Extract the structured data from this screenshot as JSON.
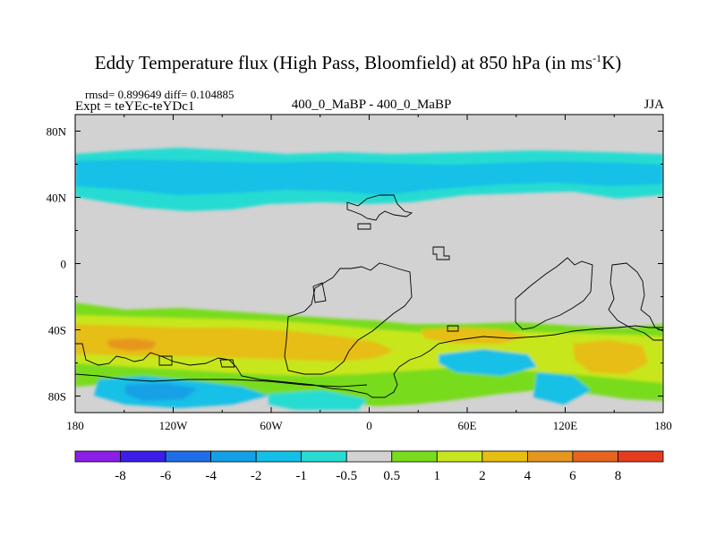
{
  "chart_data": {
    "type": "heatmap",
    "title": "Eddy Temperature flux (High Pass, Bloomfield) at 850 hPa (in ms",
    "title_superscript": "-1",
    "title_suffix": "K)",
    "stats": "rmsd= 0.899649 diff= 0.104885",
    "experiment": "Expt = teYEc-teYDc1",
    "center_label": "400_0_MaBP - 400_0_MaBP",
    "season": "JJA",
    "x_range": [
      -180,
      180
    ],
    "y_range": [
      -90,
      90
    ],
    "x_ticks": [
      {
        "value": -180,
        "label": "180"
      },
      {
        "value": -120,
        "label": "120W"
      },
      {
        "value": -60,
        "label": "60W"
      },
      {
        "value": 0,
        "label": "0"
      },
      {
        "value": 60,
        "label": "60E"
      },
      {
        "value": 120,
        "label": "120E"
      },
      {
        "value": 180,
        "label": "180"
      }
    ],
    "y_ticks": [
      {
        "value": 80,
        "label": "80N"
      },
      {
        "value": 40,
        "label": "40N"
      },
      {
        "value": 0,
        "label": "0"
      },
      {
        "value": -40,
        "label": "40S"
      },
      {
        "value": -80,
        "label": "80S"
      }
    ],
    "colorbar": {
      "levels": [
        "-8",
        "-6",
        "-4",
        "-2",
        "-1",
        "-0.5",
        "0.5",
        "1",
        "2",
        "4",
        "6",
        "8"
      ],
      "colors": [
        "#8c1ee8",
        "#3c1ee8",
        "#1e6ee8",
        "#14a0e6",
        "#14c0e6",
        "#28dcd2",
        "#d2d2d2",
        "#78dc1e",
        "#c8e61e",
        "#e6be14",
        "#e6961e",
        "#e6641e",
        "#e63c1e"
      ]
    },
    "regions": [
      {
        "level": "-1 to -0.5",
        "lat_range": [
          36,
          68
        ],
        "description": "band of negative flux across northern mid-latitudes"
      },
      {
        "level": "-2 to -1",
        "lat_range": [
          44,
          64
        ],
        "description": "embedded core of the northern band"
      },
      {
        "level": "1 to 2",
        "lat_range": [
          -84,
          -25
        ],
        "description": "southern mid-latitude positive band"
      },
      {
        "level": "2 to 4",
        "lat_range": [
          -68,
          -42
        ],
        "description": "southern positive core"
      },
      {
        "level": "4 to 6",
        "lat_range": [
          -58,
          -45
        ],
        "description": "maximum over the South Pacific"
      },
      {
        "level": "-2 to -1",
        "lat_range": [
          -90,
          -66
        ],
        "description": "negative patches near Antarctica"
      }
    ]
  }
}
